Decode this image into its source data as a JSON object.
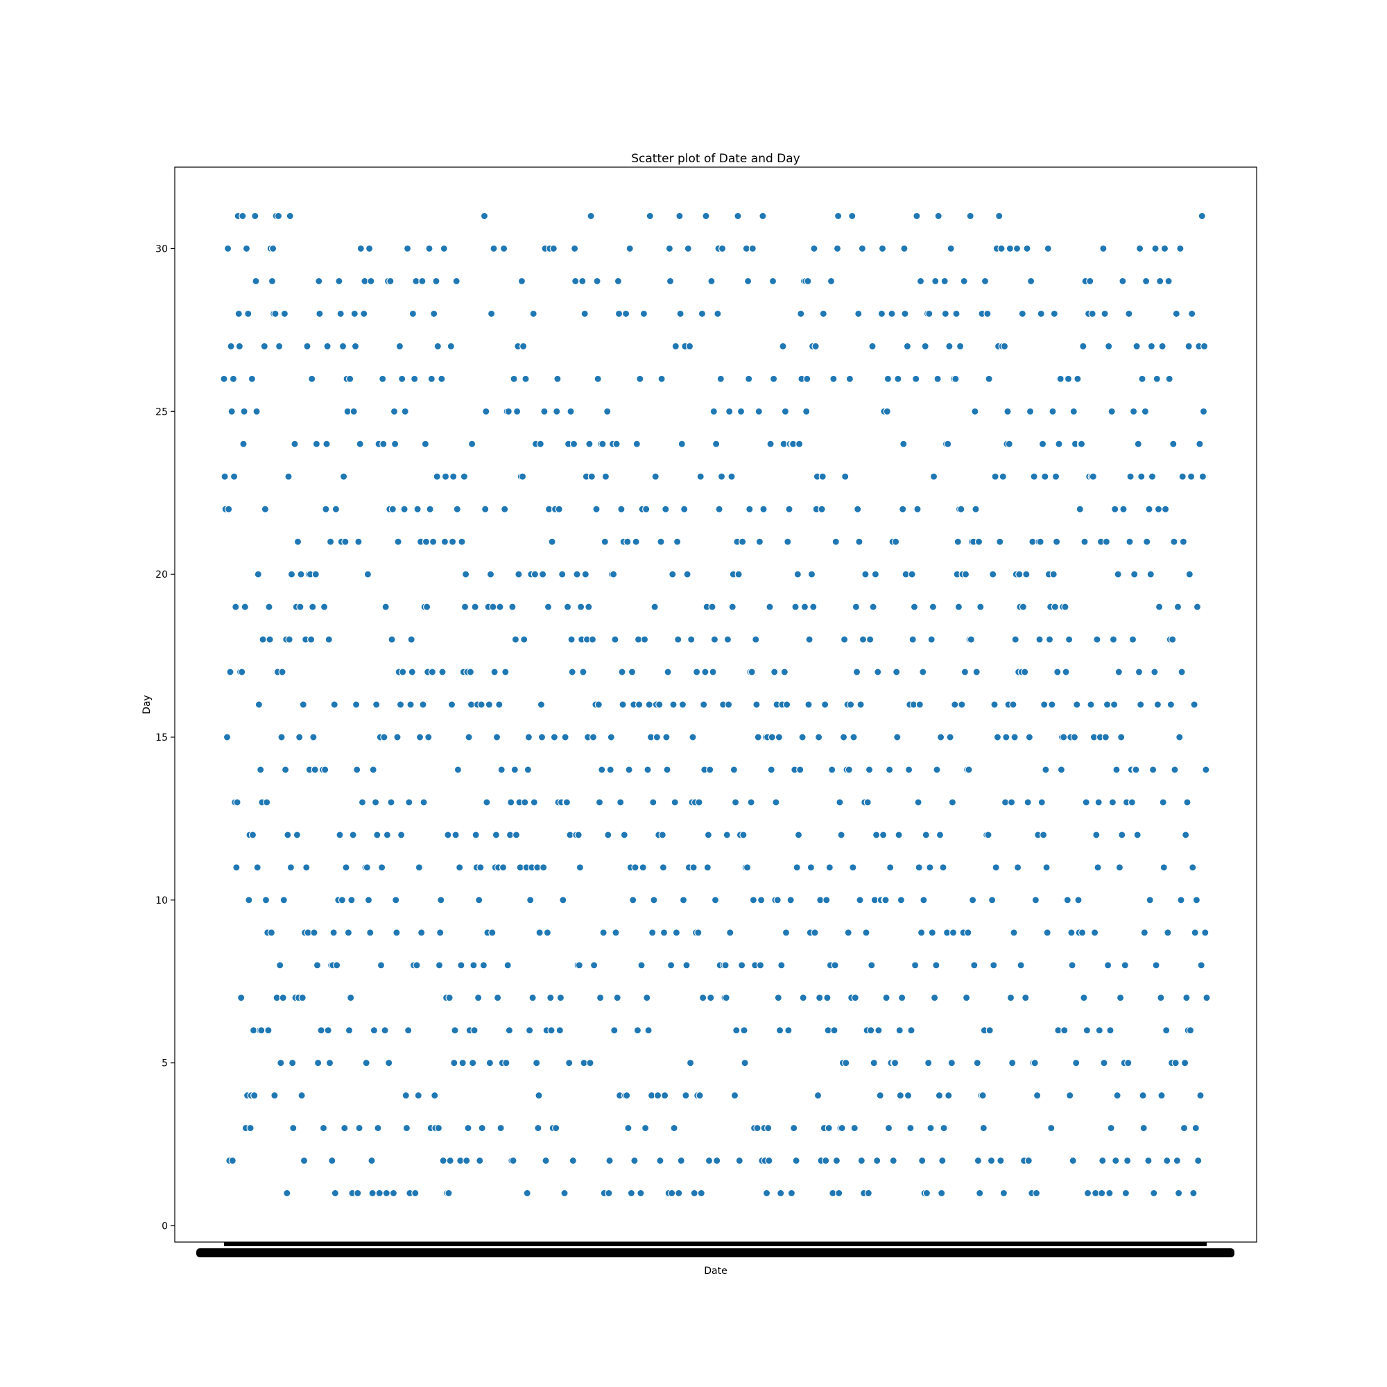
{
  "chart_data": {
    "type": "scatter",
    "title": "Scatter plot of Date and Day",
    "xlabel": "Date",
    "ylabel": "Day",
    "x_axis_kind": "categorical-dates",
    "x_tick_labels": "overlapping and illegible (one per data point)",
    "x_count": 1097,
    "ylim": [
      -0.5,
      32.5
    ],
    "yticks": [
      0,
      5,
      10,
      15,
      20,
      25,
      30
    ],
    "grid": false,
    "legend": "none",
    "point_color": "#1f77b4",
    "series": [
      {
        "values": [
          26,
          23,
          22,
          15,
          15,
          30,
          22,
          2,
          17,
          27,
          25,
          2,
          26,
          23,
          13,
          19,
          11,
          13,
          31,
          28,
          27,
          17,
          7,
          17,
          31,
          24,
          25,
          19,
          3,
          30,
          4,
          28,
          10,
          12,
          3,
          4,
          26,
          12,
          6,
          4,
          31,
          29,
          25,
          11,
          20,
          16,
          6,
          14,
          6,
          13,
          18,
          27,
          27,
          22,
          10,
          13,
          9,
          6,
          19,
          18,
          30,
          9,
          29,
          30,
          28,
          4,
          28,
          31,
          7,
          17,
          31,
          27,
          8,
          5,
          15,
          17,
          7,
          10,
          28,
          14,
          18,
          1,
          12,
          23,
          18,
          31,
          11,
          20,
          5,
          3,
          24,
          24,
          7,
          19,
          12,
          21,
          7,
          15,
          19,
          20,
          4,
          7,
          16,
          2,
          9,
          18,
          11,
          27,
          9,
          20,
          14,
          20,
          18,
          26,
          19,
          15,
          9,
          14,
          20,
          24,
          8,
          5,
          29,
          28,
          6,
          6,
          14,
          14,
          3,
          19,
          14,
          22,
          24,
          27,
          6,
          18,
          5,
          21,
          8,
          2,
          8,
          9,
          16,
          1,
          22,
          8,
          10,
          10,
          29,
          12,
          28,
          21,
          10,
          27,
          23,
          3,
          21,
          11,
          26,
          25,
          9,
          6,
          26,
          7,
          10,
          1,
          12,
          25,
          28,
          27,
          16,
          14,
          1,
          21,
          3,
          24,
          30,
          13,
          13,
          28,
          28,
          29,
          11,
          5,
          11,
          20,
          10,
          30,
          9,
          29,
          2,
          1,
          14,
          6,
          13,
          13,
          16,
          12,
          3,
          24,
          1,
          15,
          8,
          11,
          26,
          24,
          15,
          6,
          19,
          1,
          12,
          29,
          5,
          22,
          29,
          13,
          18,
          22,
          1,
          25,
          24,
          10,
          9,
          15,
          21,
          17,
          27,
          16,
          12,
          26,
          17,
          22,
          22,
          25,
          4,
          3,
          30,
          6,
          13,
          1,
          16,
          18,
          17,
          28,
          8,
          26,
          1,
          29,
          8,
          22,
          4,
          11,
          15,
          21,
          9,
          29,
          16,
          13,
          19,
          24,
          21,
          19,
          17,
          15,
          30,
          22,
          3,
          26,
          17,
          21,
          28,
          4,
          3,
          29,
          23,
          27,
          3,
          8,
          9,
          10,
          26,
          17,
          2,
          30,
          21,
          23,
          7,
          1,
          12,
          1,
          7,
          2,
          27,
          16,
          21,
          23,
          5,
          6,
          12,
          29,
          22,
          14,
          11,
          11,
          2,
          8,
          21,
          5,
          17,
          23,
          19,
          20,
          2,
          17,
          3,
          15,
          6,
          17,
          16,
          24,
          5,
          8,
          6,
          19,
          12,
          11,
          16,
          7,
          10,
          2,
          11,
          16,
          3,
          8,
          8,
          31,
          22,
          25,
          13,
          9,
          19,
          16,
          5,
          20,
          28,
          9,
          19,
          30,
          17,
          11,
          12,
          15,
          7,
          11,
          16,
          19,
          3,
          14,
          5,
          11,
          30,
          22,
          17,
          5,
          25,
          8,
          25,
          6,
          12,
          13,
          2,
          19,
          2,
          26,
          14,
          18,
          12,
          25,
          27,
          20,
          13,
          11,
          23,
          29,
          23,
          27,
          18,
          13,
          26,
          11,
          1,
          14,
          15,
          6,
          10,
          20,
          11,
          7,
          28,
          13,
          20,
          24,
          5,
          11,
          3,
          4,
          9,
          24,
          16,
          15,
          20,
          11,
          25,
          30,
          2,
          6,
          9,
          19,
          22,
          30,
          7,
          6,
          21,
          3,
          30,
          15,
          22,
          3,
          25,
          26,
          13,
          22,
          6,
          7,
          13,
          20,
          10,
          1,
          1,
          15,
          13,
          13,
          19,
          24,
          5,
          12,
          25,
          18,
          17,
          2,
          24,
          30,
          29,
          12,
          20,
          8,
          12,
          8,
          11,
          19,
          18,
          29,
          17,
          5,
          28,
          20,
          23,
          18,
          15,
          19,
          24,
          5,
          31,
          23,
          18,
          15,
          8,
          16,
          16,
          22,
          29,
          26,
          16,
          13,
          7,
          24,
          14,
          24,
          9,
          1,
          21,
          23,
          25,
          25,
          12,
          1,
          2,
          14,
          15,
          20,
          24,
          20,
          6,
          18,
          9,
          24,
          7,
          29,
          28,
          4,
          13,
          22,
          17,
          16,
          21,
          12,
          4,
          28,
          4,
          21,
          3,
          14,
          30,
          11,
          1,
          17,
          10,
          16,
          2,
          11,
          21,
          24,
          6,
          18,
          16,
          26,
          1,
          8,
          22,
          11,
          28,
          18,
          3,
          22,
          7,
          14,
          6,
          16,
          31,
          15,
          4,
          9,
          13,
          10,
          19,
          23,
          16,
          15,
          4,
          12,
          16,
          2,
          21,
          26,
          12,
          11,
          9,
          4,
          22,
          15,
          14,
          17,
          1,
          30,
          29,
          8,
          1,
          20,
          16,
          3,
          13,
          27,
          9,
          21,
          18,
          1,
          31,
          28,
          2,
          24,
          16,
          10,
          22,
          27,
          4,
          8,
          20,
          30,
          11,
          27,
          5,
          18,
          13,
          15,
          11,
          1,
          13,
          9,
          17,
          4,
          9,
          13,
          4,
          23,
          1,
          28,
          7,
          16,
          14,
          17,
          31,
          19,
          11,
          12,
          2,
          14,
          7,
          29,
          19,
          17,
          25,
          18,
          10,
          24,
          2,
          28,
          30,
          22,
          8,
          26,
          23,
          30,
          16,
          8,
          7,
          8,
          7,
          12,
          18,
          16,
          25,
          9,
          23,
          23,
          19,
          20,
          14,
          4,
          13,
          6,
          21,
          31,
          20,
          2,
          12,
          25,
          8,
          21,
          12,
          6,
          5,
          11,
          30,
          11,
          29,
          26,
          22,
          17,
          13,
          17,
          30,
          10,
          3,
          8,
          18,
          16,
          3,
          15,
          25,
          21,
          8,
          10,
          2,
          31,
          22,
          3,
          2,
          15,
          1,
          15,
          3,
          2,
          19,
          24,
          14,
          15,
          29,
          26,
          17,
          10,
          13,
          16,
          10,
          7,
          15,
          6,
          1,
          8,
          16,
          27,
          24,
          17,
          25,
          9,
          16,
          21,
          6,
          22,
          24,
          10,
          1,
          24,
          24,
          3,
          14,
          19,
          2,
          11,
          20,
          12,
          24,
          14,
          28,
          26,
          15,
          7,
          29,
          19,
          29,
          25,
          26,
          29,
          16,
          18,
          9,
          11,
          20,
          27,
          19,
          30,
          9,
          27,
          22,
          23,
          4,
          15,
          7,
          10,
          2,
          22,
          23,
          28,
          3,
          16,
          2,
          10,
          7,
          6,
          3,
          11,
          8,
          29,
          14,
          1,
          26,
          6,
          8,
          21,
          2,
          30,
          31,
          1,
          13,
          3,
          12,
          3,
          5,
          15,
          18,
          23,
          5,
          14,
          16,
          9,
          14,
          26,
          16,
          7,
          31,
          11,
          15,
          3,
          7,
          19,
          17,
          22,
          28,
          21,
          10,
          16,
          2,
          30,
          18,
          1,
          13,
          20,
          9,
          6,
          13,
          1,
          14,
          18,
          6,
          8,
          27,
          19,
          5,
          10,
          20,
          12,
          2,
          17,
          6,
          4,
          4,
          10,
          28,
          30,
          12,
          25,
          10,
          10,
          7,
          25,
          26,
          3,
          14,
          11,
          5,
          28,
          21,
          2,
          5,
          5,
          21,
          17,
          15,
          26,
          12,
          6,
          4,
          10,
          7,
          22,
          24,
          30,
          28,
          20,
          27,
          27,
          4,
          14,
          16,
          3,
          6,
          20,
          18,
          16,
          19,
          8,
          26,
          31,
          22,
          13,
          11,
          16,
          29,
          9,
          2,
          17,
          10,
          1,
          27,
          12,
          1,
          28,
          5,
          28,
          11,
          3,
          18,
          9,
          19,
          23,
          7,
          29,
          8,
          14,
          26,
          31,
          4,
          12,
          15,
          1,
          2,
          11,
          3,
          29,
          28,
          24,
          9,
          24,
          4,
          27,
          15,
          30,
          5,
          13,
          9,
          26,
          16,
          26,
          28,
          20,
          21,
          19,
          22,
          27,
          22,
          16,
          20,
          9,
          29,
          17,
          20,
          7,
          14,
          9,
          14,
          18,
          31,
          18,
          21,
          10,
          21,
          8,
          25,
          22,
          17,
          5,
          2,
          21,
          1,
          19,
          4,
          28,
          4,
          3,
          6,
          29,
          12,
          12,
          28,
          12,
          26,
          6,
          2,
          2,
          10,
          20,
          8,
          16,
          23,
          11,
          30,
          15,
          27,
          31,
          21,
          2,
          30,
          27,
          23,
          1,
          27,
          13,
          15,
          24,
          25,
          16,
          24,
          30,
          7,
          13,
          5,
          16,
          9,
          15,
          18,
          20,
          30,
          11,
          17,
          20,
          19,
          8,
          17,
          28,
          19,
          2,
          17,
          7,
          20,
          30,
          13,
          2,
          15,
          25,
          29,
          1,
          21,
          5,
          23,
          5,
          10,
          1,
          4,
          12,
          21,
          18,
          21,
          28,
          13,
          24,
          12,
          16,
          23,
          14,
          11,
          9,
          30,
          20,
          18,
          19,
          3,
          16,
          25,
          20,
          28,
          19,
          23,
          21,
          17,
          6,
          24,
          26,
          26,
          14,
          15,
          19,
          15,
          6,
          19,
          17,
          10,
          10,
          26,
          18,
          4,
          15,
          9,
          8,
          2,
          25,
          15,
          24,
          5,
          16,
          26,
          10,
          9,
          22,
          24,
          24,
          9,
          27,
          7,
          21,
          29,
          13,
          6,
          1,
          28,
          23,
          29,
          16,
          23,
          28,
          23,
          15,
          9,
          1,
          12,
          18,
          11,
          13,
          6,
          15,
          21,
          1,
          2,
          30,
          5,
          28,
          15,
          21,
          16,
          8,
          27,
          1,
          6,
          3,
          25,
          13,
          18,
          16,
          22,
          2,
          14,
          4,
          20,
          17,
          11,
          7,
          15,
          12,
          29,
          22,
          5,
          8,
          1,
          13,
          2,
          5,
          28,
          21,
          23,
          14,
          13,
          18,
          25,
          20,
          14,
          14,
          27,
          12,
          24,
          17,
          30,
          16,
          23,
          26,
          4,
          3,
          9,
          25,
          29,
          21,
          2,
          2,
          22,
          10,
          20,
          27,
          23,
          14,
          1,
          17,
          30,
          8,
          26,
          16,
          22,
          19,
          29,
          7,
          4,
          27,
          13,
          11,
          30,
          22,
          6,
          2,
          9,
          29,
          26,
          18,
          16,
          5,
          18,
          24,
          21,
          14,
          5,
          28,
          2,
          19,
          1,
          15,
          30,
          10,
          17,
          23,
          21,
          3,
          5,
          12,
          7,
          13,
          6,
          27,
          20,
          6,
          23,
          28,
          11,
          1,
          16,
          9,
          3,
          10,
          19,
          2,
          27,
          24,
          4,
          8,
          31,
          23,
          25,
          27,
          9,
          14,
          7
        ]
      }
    ]
  }
}
